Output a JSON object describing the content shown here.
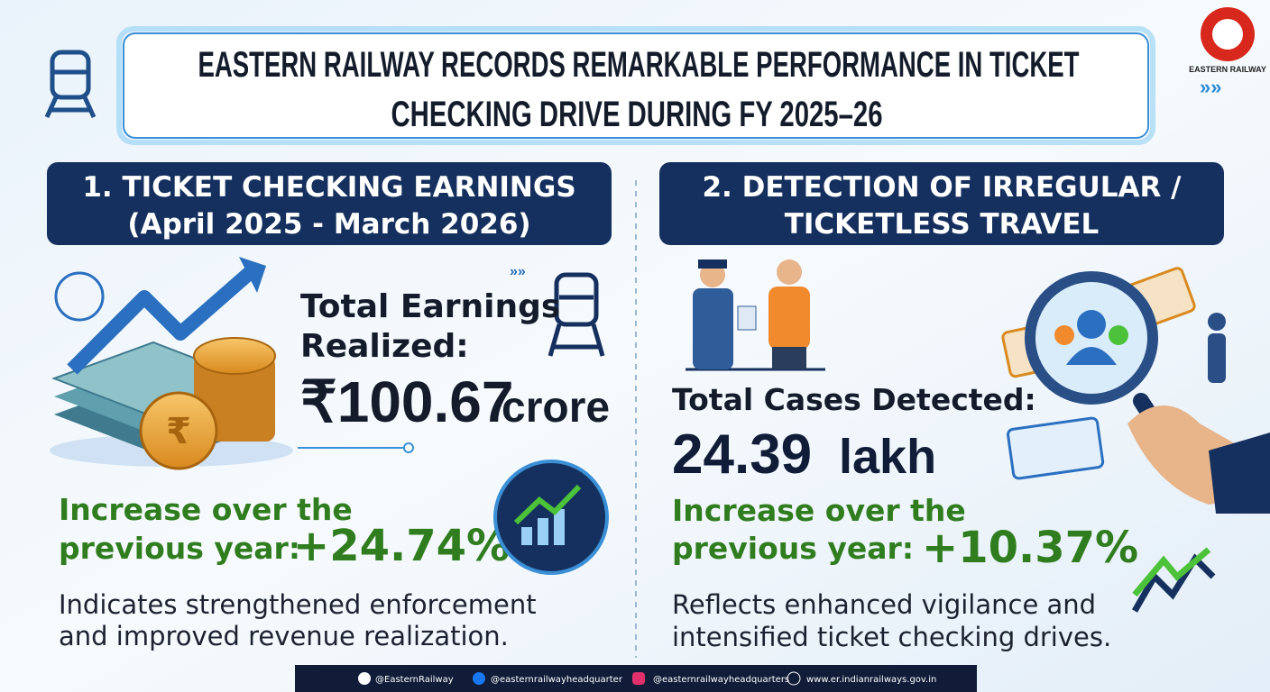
{
  "header": {
    "title_lines": [
      "EASTERN RAILWAY RECORDS REMARKABLE PERFORMANCE IN TICKET",
      "CHECKING DRIVE DURING FY 2025–26"
    ],
    "logo_label": "EASTERN RAILWAY"
  },
  "section1": {
    "heading_lines": [
      "1. TICKET CHECKING EARNINGS",
      "(April 2025 - March 2026)"
    ],
    "metric_label_lines": [
      "Total Earnings",
      "Realized:"
    ],
    "metric_value": "₹100.67",
    "metric_unit": "crore",
    "increase_label_lines": [
      "Increase over the",
      "previous year:"
    ],
    "increase_value": "+24.74%",
    "note_lines": [
      "Indicates strengthened enforcement",
      "and improved revenue realization."
    ]
  },
  "section2": {
    "heading_lines": [
      "2. DETECTION OF IRREGULAR /",
      "TICKETLESS TRAVEL"
    ],
    "metric_label": "Total Cases Detected:",
    "metric_value": "24.39",
    "metric_unit": "lakh",
    "increase_label_lines": [
      "Increase over the",
      "previous year:"
    ],
    "increase_value": "+10.37%",
    "note_lines": [
      "Reflects enhanced vigilance and",
      "intensified ticket checking drives."
    ]
  },
  "footer": {
    "links": [
      "@EasternRailway",
      "@easternrailwayheadquarter",
      "@easternrailwayheadquarters",
      "www.er.indianrailways.gov.in"
    ]
  }
}
